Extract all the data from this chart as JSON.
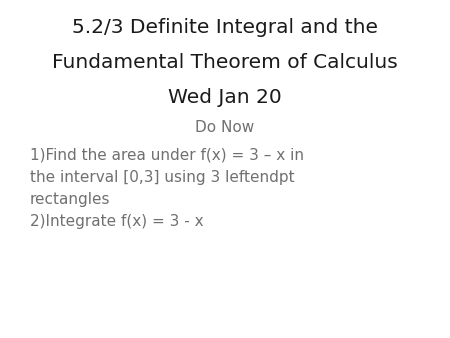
{
  "title_line1": "5.2/3 Definite Integral and the",
  "title_line2": "Fundamental Theorem of Calculus",
  "title_line3": "Wed Jan 20",
  "subtitle": "Do Now",
  "item1_line1": "1)Find the area under f(x) = 3 – x in",
  "item1_line2": "the interval [0,3] using 3 leftendpt",
  "item1_line3": "rectangles",
  "item2": "2)Integrate f(x) = 3 - x",
  "title_color": "#1a1a1a",
  "subtitle_color": "#707070",
  "body_color": "#707070",
  "background_color": "#ffffff",
  "title_fontsize": 14.5,
  "subtitle_fontsize": 11,
  "body_fontsize": 11
}
